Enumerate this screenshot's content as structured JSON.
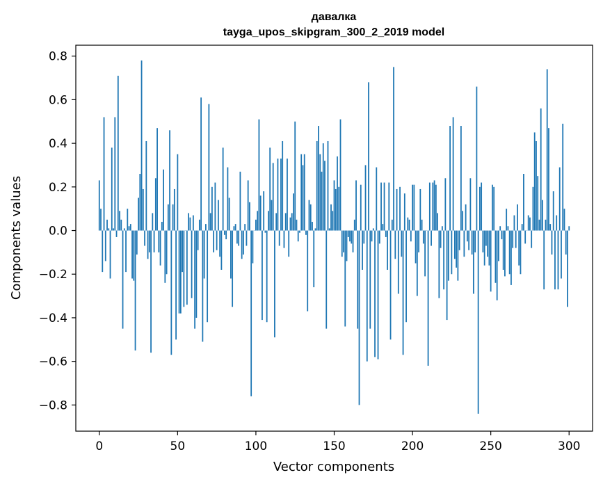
{
  "chart_data": {
    "type": "bar",
    "title_line1": "давалка",
    "title_line2": "tayga_upos_skipgram_300_2_2019 model",
    "xlabel": "Vector components",
    "ylabel": "Components values",
    "xlim": [
      -15,
      315
    ],
    "ylim": [
      -0.92,
      0.85
    ],
    "xticks": [
      0,
      50,
      100,
      150,
      200,
      250,
      300
    ],
    "xtick_labels": [
      "0",
      "50",
      "100",
      "150",
      "200",
      "250",
      "300"
    ],
    "yticks": [
      -0.8,
      -0.6,
      -0.4,
      -0.2,
      0.0,
      0.2,
      0.4,
      0.6,
      0.8
    ],
    "ytick_labels": [
      "−0.8",
      "−0.6",
      "−0.4",
      "−0.2",
      "0.0",
      "0.2",
      "0.4",
      "0.6",
      "0.8"
    ],
    "bar_color": "#1f77b4",
    "values": [
      0.23,
      0.1,
      -0.19,
      0.52,
      -0.14,
      0.05,
      0.01,
      -0.22,
      0.38,
      0.01,
      0.52,
      -0.03,
      0.71,
      0.09,
      0.05,
      -0.45,
      0.01,
      -0.19,
      0.1,
      0.02,
      0.03,
      -0.22,
      -0.23,
      -0.55,
      -0.11,
      0.15,
      0.26,
      0.78,
      0.19,
      -0.07,
      0.41,
      -0.13,
      -0.1,
      -0.56,
      0.08,
      -0.1,
      0.24,
      0.47,
      -0.1,
      -0.16,
      0.04,
      0.28,
      -0.24,
      -0.2,
      0.12,
      0.46,
      -0.57,
      0.12,
      0.19,
      -0.5,
      0.35,
      -0.38,
      -0.38,
      -0.19,
      -0.35,
      0.0,
      -0.34,
      0.08,
      0.06,
      -0.31,
      0.07,
      -0.45,
      -0.4,
      -0.09,
      0.05,
      0.61,
      -0.51,
      -0.22,
      0.03,
      -0.42,
      0.58,
      0.08,
      0.2,
      -0.1,
      0.22,
      -0.09,
      0.14,
      -0.12,
      -0.18,
      0.38,
      -0.02,
      -0.04,
      0.29,
      0.15,
      -0.22,
      -0.35,
      0.02,
      0.03,
      -0.06,
      -0.07,
      0.27,
      -0.13,
      -0.11,
      0.03,
      -0.07,
      0.23,
      0.13,
      -0.76,
      -0.15,
      0.0,
      0.05,
      0.09,
      0.51,
      0.16,
      -0.41,
      0.18,
      -0.01,
      -0.42,
      0.09,
      0.38,
      0.14,
      0.31,
      -0.49,
      0.08,
      0.33,
      -0.07,
      0.33,
      0.41,
      -0.08,
      0.08,
      0.33,
      -0.12,
      0.06,
      0.08,
      0.17,
      0.5,
      0.05,
      -0.05,
      -0.01,
      0.35,
      0.3,
      0.35,
      -0.02,
      -0.37,
      0.14,
      0.12,
      0.04,
      -0.26,
      0.01,
      0.41,
      0.48,
      0.35,
      0.27,
      0.4,
      0.32,
      -0.45,
      0.41,
      0.01,
      0.12,
      0.09,
      0.23,
      0.19,
      0.34,
      0.2,
      0.51,
      -0.12,
      -0.1,
      -0.44,
      -0.14,
      -0.03,
      -0.05,
      -0.06,
      -0.1,
      0.05,
      0.23,
      -0.45,
      -0.8,
      0.21,
      -0.18,
      -0.06,
      0.3,
      -0.6,
      0.68,
      -0.45,
      -0.05,
      0.01,
      -0.58,
      0.29,
      -0.59,
      -0.06,
      0.22,
      0.03,
      0.22,
      -0.03,
      -0.18,
      0.22,
      -0.5,
      0.05,
      0.75,
      -0.13,
      0.19,
      -0.29,
      0.2,
      -0.12,
      -0.57,
      0.17,
      -0.42,
      0.06,
      0.05,
      -0.05,
      0.21,
      0.21,
      -0.15,
      -0.3,
      -0.1,
      0.19,
      0.05,
      -0.06,
      -0.21,
      0.0,
      -0.62,
      0.22,
      -0.07,
      0.22,
      0.23,
      0.21,
      0.08,
      -0.31,
      -0.08,
      0.02,
      -0.27,
      0.24,
      -0.41,
      -0.23,
      0.48,
      -0.2,
      0.52,
      -0.13,
      -0.17,
      -0.23,
      -0.09,
      0.48,
      0.09,
      -0.12,
      0.12,
      -0.05,
      -0.09,
      0.24,
      -0.11,
      -0.29,
      -0.1,
      0.66,
      -0.84,
      0.2,
      0.22,
      -0.1,
      -0.16,
      -0.07,
      -0.12,
      -0.16,
      -0.28,
      0.21,
      0.2,
      -0.24,
      -0.32,
      -0.14,
      0.02,
      -0.04,
      -0.18,
      -0.21,
      0.1,
      0.02,
      -0.2,
      -0.25,
      -0.08,
      0.07,
      -0.08,
      0.12,
      -0.16,
      -0.2,
      0.03,
      0.26,
      -0.06,
      0.0,
      0.07,
      0.06,
      -0.08,
      0.2,
      0.45,
      0.41,
      0.25,
      0.05,
      0.56,
      0.14,
      -0.27,
      0.05,
      0.74,
      0.47,
      0.03,
      -0.11,
      0.18,
      -0.27,
      0.07,
      -0.27,
      0.29,
      -0.22,
      0.49,
      0.1,
      -0.11,
      -0.35,
      0.02
    ]
  }
}
